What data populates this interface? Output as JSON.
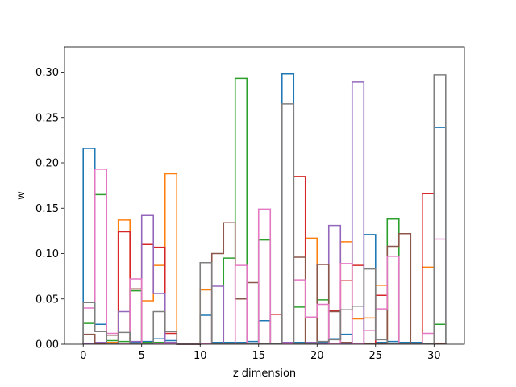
{
  "chart_data": {
    "type": "step-histogram",
    "title": "",
    "xlabel": "z dimension",
    "ylabel": "w",
    "xlim": [
      -1.6,
      32.6
    ],
    "ylim": [
      0,
      0.328
    ],
    "xticks": [
      0,
      5,
      10,
      15,
      20,
      25,
      30
    ],
    "yticks": [
      0.0,
      0.05,
      0.1,
      0.15,
      0.2,
      0.25,
      0.3
    ],
    "ytick_labels": [
      "0.00",
      "0.05",
      "0.10",
      "0.15",
      "0.20",
      "0.25",
      "0.30"
    ],
    "bin_edges": [
      0,
      1,
      2,
      3,
      4,
      5,
      6,
      7,
      8,
      9,
      10,
      11,
      12,
      13,
      14,
      15,
      16,
      17,
      18,
      19,
      20,
      21,
      22,
      23,
      24,
      25,
      26,
      27,
      28,
      29,
      30,
      31
    ],
    "series": [
      {
        "color": "#1f77b4",
        "values": [
          0.216,
          0.022,
          0.002,
          0.001,
          0.002,
          0.003,
          0.006,
          0.004,
          0.0,
          0.0,
          0.032,
          0.002,
          0.002,
          0.002,
          0.003,
          0.026,
          0.001,
          0.298,
          0.002,
          0.002,
          0.002,
          0.006,
          0.011,
          0.001,
          0.121,
          0.002,
          0.003,
          0.002,
          0.002,
          0.001,
          0.239
        ]
      },
      {
        "color": "#ff7f0e",
        "values": [
          0.001,
          0.001,
          0.002,
          0.137,
          0.001,
          0.048,
          0.087,
          0.188,
          0.0,
          0.0,
          0.06,
          0.001,
          0.001,
          0.001,
          0.001,
          0.001,
          0.001,
          0.002,
          0.001,
          0.117,
          0.001,
          0.001,
          0.113,
          0.028,
          0.029,
          0.065,
          0.001,
          0.001,
          0.001,
          0.085,
          0.001
        ]
      },
      {
        "color": "#2ca02c",
        "values": [
          0.023,
          0.165,
          0.004,
          0.003,
          0.059,
          0.002,
          0.002,
          0.001,
          0.0,
          0.0,
          0.001,
          0.001,
          0.095,
          0.293,
          0.001,
          0.115,
          0.001,
          0.001,
          0.041,
          0.001,
          0.049,
          0.001,
          0.001,
          0.001,
          0.001,
          0.001,
          0.138,
          0.001,
          0.001,
          0.001,
          0.022
        ]
      },
      {
        "color": "#d62728",
        "values": [
          0.001,
          0.001,
          0.001,
          0.124,
          0.061,
          0.11,
          0.107,
          0.012,
          0.0,
          0.0,
          0.001,
          0.001,
          0.001,
          0.001,
          0.001,
          0.001,
          0.033,
          0.001,
          0.185,
          0.001,
          0.001,
          0.037,
          0.07,
          0.087,
          0.001,
          0.054,
          0.001,
          0.001,
          0.001,
          0.166,
          0.001
        ]
      },
      {
        "color": "#9467bd",
        "values": [
          0.001,
          0.002,
          0.001,
          0.036,
          0.003,
          0.142,
          0.056,
          0.002,
          0.0,
          0.0,
          0.001,
          0.064,
          0.001,
          0.001,
          0.001,
          0.001,
          0.001,
          0.002,
          0.001,
          0.002,
          0.001,
          0.131,
          0.001,
          0.289,
          0.001,
          0.001,
          0.001,
          0.001,
          0.001,
          0.001,
          0.001
        ]
      },
      {
        "color": "#8c564b",
        "values": [
          0.011,
          0.001,
          0.01,
          0.001,
          0.061,
          0.001,
          0.001,
          0.001,
          0.0,
          0.0,
          0.001,
          0.1,
          0.134,
          0.05,
          0.068,
          0.001,
          0.001,
          0.001,
          0.096,
          0.001,
          0.088,
          0.036,
          0.002,
          0.001,
          0.001,
          0.001,
          0.108,
          0.122,
          0.001,
          0.001,
          0.001
        ]
      },
      {
        "color": "#e377c2",
        "values": [
          0.04,
          0.193,
          0.012,
          0.001,
          0.072,
          0.001,
          0.001,
          0.001,
          0.0,
          0.0,
          0.001,
          0.001,
          0.001,
          0.087,
          0.001,
          0.149,
          0.001,
          0.001,
          0.071,
          0.03,
          0.044,
          0.001,
          0.089,
          0.001,
          0.015,
          0.039,
          0.097,
          0.001,
          0.001,
          0.012,
          0.116
        ]
      },
      {
        "color": "#7f7f7f",
        "values": [
          0.046,
          0.014,
          0.001,
          0.013,
          0.001,
          0.001,
          0.036,
          0.014,
          0.0,
          0.0,
          0.09,
          0.001,
          0.001,
          0.001,
          0.001,
          0.001,
          0.001,
          0.265,
          0.001,
          0.001,
          0.003,
          0.005,
          0.038,
          0.042,
          0.083,
          0.005,
          0.001,
          0.001,
          0.001,
          0.001,
          0.297
        ]
      }
    ]
  }
}
